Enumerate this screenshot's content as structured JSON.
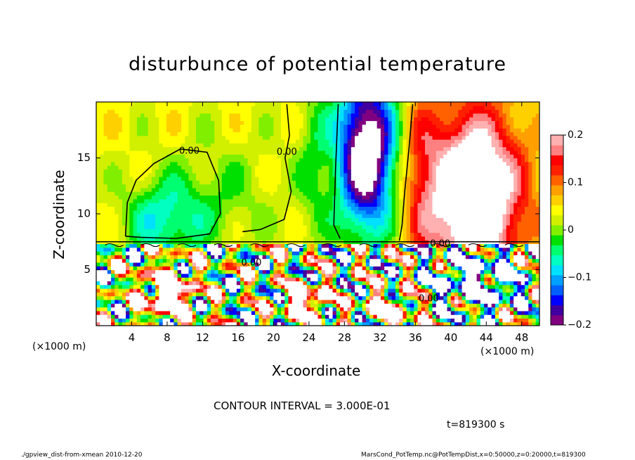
{
  "chart_data": {
    "type": "heatmap",
    "title": "disturbunce of potential temperature",
    "xlabel": "X-coordinate",
    "ylabel": "Z-coordinate",
    "x_unit_label": "(×1000 m)",
    "xlim": [
      0,
      50
    ],
    "ylim": [
      0,
      20
    ],
    "x_ticks": [
      4,
      8,
      12,
      16,
      20,
      24,
      28,
      32,
      36,
      40,
      44,
      48
    ],
    "y_ticks": [
      5,
      10,
      15
    ],
    "colorbar": {
      "vmin": -0.2,
      "vmax": 0.2,
      "tick_values": [
        0.2,
        0.1,
        0,
        -0.1,
        -0.2
      ],
      "tick_labels": [
        "0.2",
        "0.1",
        "0",
        "−0.1",
        "−0.2"
      ],
      "colors": [
        "#800080",
        "#4000a0",
        "#0000ff",
        "#0060ff",
        "#00a0ff",
        "#00e0ff",
        "#00ffc0",
        "#00ff70",
        "#00e000",
        "#80f000",
        "#d0f000",
        "#ffff00",
        "#ffd000",
        "#ffa000",
        "#ff6000",
        "#ff2000",
        "#ff0000",
        "#ff8080",
        "#ffb0b0"
      ]
    },
    "contour_labels": [
      {
        "text": "0.00",
        "x": 10.5,
        "z": 15.6
      },
      {
        "text": "0.00",
        "x": 21.5,
        "z": 15.5
      },
      {
        "text": "0.00",
        "x": 38.8,
        "z": 7.3
      },
      {
        "text": "0.00",
        "x": 17.5,
        "z": 5.6
      },
      {
        "text": "0.00",
        "x": 37.5,
        "z": 2.4
      }
    ],
    "contour_interval_text": "CONTOUR INTERVAL = 3.000E-01",
    "time_text": "t=819300 s"
  },
  "footer": {
    "left": "./gpview_dist-from-xmean  2010-12-20",
    "right": "MarsCond_PotTemp.nc@PotTempDist,x=0:50000,z=0:20000,t=819300"
  }
}
